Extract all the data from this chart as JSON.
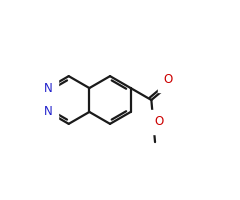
{
  "bg_color": "#ffffff",
  "bond_color": "#1a1a1a",
  "nitrogen_color": "#2222cc",
  "oxygen_color": "#cc0000",
  "bond_width": 1.6,
  "dbo": 0.012,
  "figsize": [
    2.4,
    2.0
  ],
  "dpi": 100,
  "xlim": [
    0.0,
    1.0
  ],
  "ylim": [
    0.1,
    0.9
  ]
}
